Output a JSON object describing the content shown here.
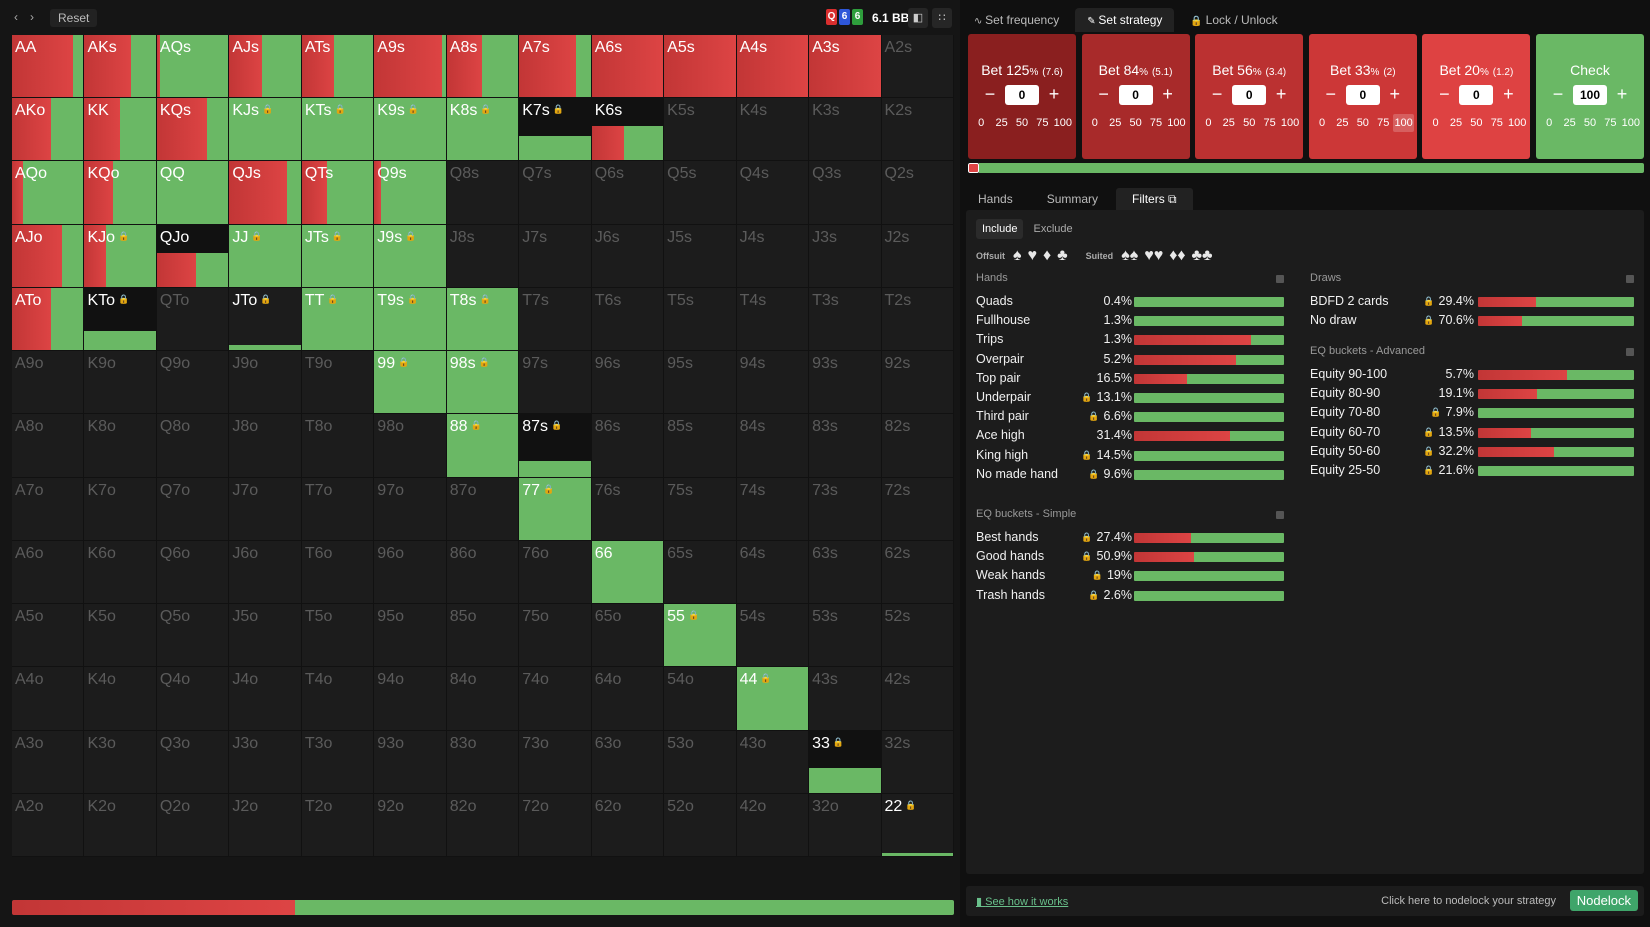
{
  "colors": {
    "red": "#dd4444",
    "darkred": "#c23636",
    "green": "#6ab865",
    "cell_bg": "#1c1c1c",
    "cell_dim_text": "#5b5b5b"
  },
  "topbar": {
    "back_icon": "chevron-left-icon",
    "forward_icon": "chevron-right-icon",
    "reset_label": "Reset",
    "board": [
      {
        "rank": "Q",
        "color": "#d92e2e"
      },
      {
        "rank": "6",
        "color": "#2e57d9"
      },
      {
        "rank": "6",
        "color": "#2e9e3c"
      }
    ],
    "pot": "6.1 BB"
  },
  "grid": {
    "ranks": [
      "A",
      "K",
      "Q",
      "J",
      "T",
      "9",
      "8",
      "7",
      "6",
      "5",
      "4",
      "3",
      "2"
    ],
    "hands": {
      "AA": {
        "freq": 1,
        "red": 0.85,
        "locked": false
      },
      "AKs": {
        "freq": 1,
        "red": 0.65,
        "locked": false
      },
      "AQs": {
        "freq": 1,
        "red": 0.05,
        "locked": false
      },
      "AJs": {
        "freq": 1,
        "red": 0.45,
        "locked": false
      },
      "ATs": {
        "freq": 1,
        "red": 0.45,
        "locked": false
      },
      "A9s": {
        "freq": 1,
        "red": 0.95,
        "locked": false
      },
      "A8s": {
        "freq": 1,
        "red": 0.5,
        "locked": false
      },
      "A7s": {
        "freq": 1,
        "red": 0.8,
        "locked": false
      },
      "A6s": {
        "freq": 1,
        "red": 1,
        "locked": false
      },
      "A5s": {
        "freq": 1,
        "red": 1,
        "locked": false
      },
      "A4s": {
        "freq": 1,
        "red": 1,
        "locked": false
      },
      "A3s": {
        "freq": 1,
        "red": 1,
        "locked": false
      },
      "AKo": {
        "freq": 1,
        "red": 0.55,
        "locked": false
      },
      "KK": {
        "freq": 1,
        "red": 0.5,
        "locked": false
      },
      "KQs": {
        "freq": 1,
        "red": 0.7,
        "locked": false
      },
      "KJs": {
        "freq": 1,
        "red": 0,
        "locked": true
      },
      "KTs": {
        "freq": 1,
        "red": 0,
        "locked": true
      },
      "K9s": {
        "freq": 1,
        "red": 0,
        "locked": true
      },
      "K8s": {
        "freq": 1,
        "red": 0,
        "locked": true
      },
      "K7s": {
        "freq": 0.4,
        "red": 0,
        "locked": true
      },
      "K6s": {
        "freq": 0.55,
        "red": 0.45,
        "locked": false
      },
      "AQo": {
        "freq": 1,
        "red": 0.15,
        "locked": false
      },
      "KQo": {
        "freq": 1,
        "red": 0.4,
        "locked": false
      },
      "QQ": {
        "freq": 1,
        "red": 0,
        "locked": false
      },
      "QJs": {
        "freq": 1,
        "red": 0.8,
        "locked": false
      },
      "QTs": {
        "freq": 1,
        "red": 0.35,
        "locked": false
      },
      "Q9s": {
        "freq": 1,
        "red": 0.1,
        "locked": false
      },
      "AJo": {
        "freq": 1,
        "red": 0.7,
        "locked": false
      },
      "KJo": {
        "freq": 1,
        "red": 0.3,
        "locked": true
      },
      "QJo": {
        "freq": 0.55,
        "red": 0.55,
        "locked": false
      },
      "JJ": {
        "freq": 1,
        "red": 0,
        "locked": true
      },
      "JTs": {
        "freq": 1,
        "red": 0,
        "locked": true
      },
      "J9s": {
        "freq": 1,
        "red": 0,
        "locked": true
      },
      "ATo": {
        "freq": 1,
        "red": 0.55,
        "locked": false
      },
      "KTo": {
        "freq": 0.3,
        "red": 0,
        "locked": true
      },
      "JTo": {
        "freq": 0.08,
        "red": 0,
        "locked": true
      },
      "TT": {
        "freq": 1,
        "red": 0,
        "locked": true
      },
      "T9s": {
        "freq": 1,
        "red": 0,
        "locked": true
      },
      "T8s": {
        "freq": 1,
        "red": 0,
        "locked": true
      },
      "99": {
        "freq": 1,
        "red": 0,
        "locked": true
      },
      "98s": {
        "freq": 1,
        "red": 0,
        "locked": true
      },
      "88": {
        "freq": 1,
        "red": 0,
        "locked": true
      },
      "87s": {
        "freq": 0.25,
        "red": 0,
        "locked": true
      },
      "77": {
        "freq": 1,
        "red": 0,
        "locked": true
      },
      "66": {
        "freq": 1,
        "red": 0,
        "locked": false
      },
      "55": {
        "freq": 1,
        "red": 0,
        "locked": true
      },
      "44": {
        "freq": 1,
        "red": 0,
        "locked": true
      },
      "33": {
        "freq": 0.4,
        "red": 0,
        "locked": true
      },
      "22": {
        "freq": 0.05,
        "red": 0,
        "locked": true
      }
    },
    "overall_bet_fraction": 0.3
  },
  "toptabs": [
    {
      "label": "Set frequency",
      "icon": "wave-icon",
      "active": false
    },
    {
      "label": "Set strategy",
      "icon": "pencil-icon",
      "active": true
    },
    {
      "label": "Lock / Unlock",
      "icon": "lock-icon",
      "active": false
    }
  ],
  "bets": [
    {
      "title": "Bet 125",
      "pct": "%",
      "size": "(7.6)",
      "value": "0",
      "color": "#8a1f1f",
      "quick": [
        "0",
        "25",
        "50",
        "75",
        "100"
      ],
      "selected": ""
    },
    {
      "title": "Bet 84",
      "pct": "%",
      "size": "(5.1)",
      "value": "0",
      "color": "#a82a2a",
      "quick": [
        "0",
        "25",
        "50",
        "75",
        "100"
      ],
      "selected": ""
    },
    {
      "title": "Bet 56",
      "pct": "%",
      "size": "(3.4)",
      "value": "0",
      "color": "#bb3131",
      "quick": [
        "0",
        "25",
        "50",
        "75",
        "100"
      ],
      "selected": ""
    },
    {
      "title": "Bet 33",
      "pct": "%",
      "size": "(2)",
      "value": "0",
      "color": "#cc3737",
      "quick": [
        "0",
        "25",
        "50",
        "75",
        "100"
      ],
      "selected": "100"
    },
    {
      "title": "Bet 20",
      "pct": "%",
      "size": "(1.2)",
      "value": "0",
      "color": "#de4242",
      "quick": [
        "0",
        "25",
        "50",
        "75",
        "100"
      ],
      "selected": ""
    },
    {
      "title": "Check",
      "pct": "",
      "size": "",
      "value": "100",
      "color": "#6ab865",
      "quick": [
        "0",
        "25",
        "50",
        "75",
        "100"
      ],
      "selected": ""
    }
  ],
  "subtabs": [
    {
      "label": "Hands",
      "active": false
    },
    {
      "label": "Summary",
      "active": false
    },
    {
      "label": "Filters",
      "active": true,
      "icon": "copy-icon"
    }
  ],
  "filters": {
    "include_label": "Include",
    "exclude_label": "Exclude",
    "offsuit_label": "Offsuit",
    "suited_label": "Suited",
    "hands": {
      "title": "Hands",
      "rows": [
        {
          "name": "Quads",
          "pct": "0.4%",
          "lock": false,
          "red": 0
        },
        {
          "name": "Fullhouse",
          "pct": "1.3%",
          "lock": false,
          "red": 0
        },
        {
          "name": "Trips",
          "pct": "1.3%",
          "lock": false,
          "red": 0.78
        },
        {
          "name": "Overpair",
          "pct": "5.2%",
          "lock": false,
          "red": 0.68
        },
        {
          "name": "Top pair",
          "pct": "16.5%",
          "lock": false,
          "red": 0.35
        },
        {
          "name": "Underpair",
          "pct": "13.1%",
          "lock": true,
          "red": 0
        },
        {
          "name": "Third pair",
          "pct": "6.6%",
          "lock": true,
          "red": 0
        },
        {
          "name": "Ace high",
          "pct": "31.4%",
          "lock": false,
          "red": 0.64
        },
        {
          "name": "King high",
          "pct": "14.5%",
          "lock": true,
          "red": 0
        },
        {
          "name": "No made hand",
          "pct": "9.6%",
          "lock": true,
          "red": 0
        }
      ]
    },
    "eq_simple": {
      "title": "EQ buckets - Simple",
      "rows": [
        {
          "name": "Best hands",
          "pct": "27.4%",
          "lock": true,
          "red": 0.38
        },
        {
          "name": "Good hands",
          "pct": "50.9%",
          "lock": true,
          "red": 0.4
        },
        {
          "name": "Weak hands",
          "pct": "19%",
          "lock": true,
          "red": 0
        },
        {
          "name": "Trash hands",
          "pct": "2.6%",
          "lock": true,
          "red": 0
        }
      ]
    },
    "draws": {
      "title": "Draws",
      "rows": [
        {
          "name": "BDFD 2 cards",
          "pct": "29.4%",
          "lock": true,
          "red": 0.37
        },
        {
          "name": "No draw",
          "pct": "70.6%",
          "lock": true,
          "red": 0.28
        }
      ]
    },
    "eq_advanced": {
      "title": "EQ buckets - Advanced",
      "rows": [
        {
          "name": "Equity 90-100",
          "pct": "5.7%",
          "lock": false,
          "red": 0.57
        },
        {
          "name": "Equity 80-90",
          "pct": "19.1%",
          "lock": false,
          "red": 0.38
        },
        {
          "name": "Equity 70-80",
          "pct": "7.9%",
          "lock": true,
          "red": 0
        },
        {
          "name": "Equity 60-70",
          "pct": "13.5%",
          "lock": true,
          "red": 0.34
        },
        {
          "name": "Equity 50-60",
          "pct": "32.2%",
          "lock": true,
          "red": 0.49
        },
        {
          "name": "Equity 25-50",
          "pct": "21.6%",
          "lock": true,
          "red": 0
        }
      ]
    }
  },
  "bottom": {
    "how_label": "See how it works",
    "hint": "Click here to nodelock your strategy",
    "nodelock_label": "Nodelock"
  }
}
